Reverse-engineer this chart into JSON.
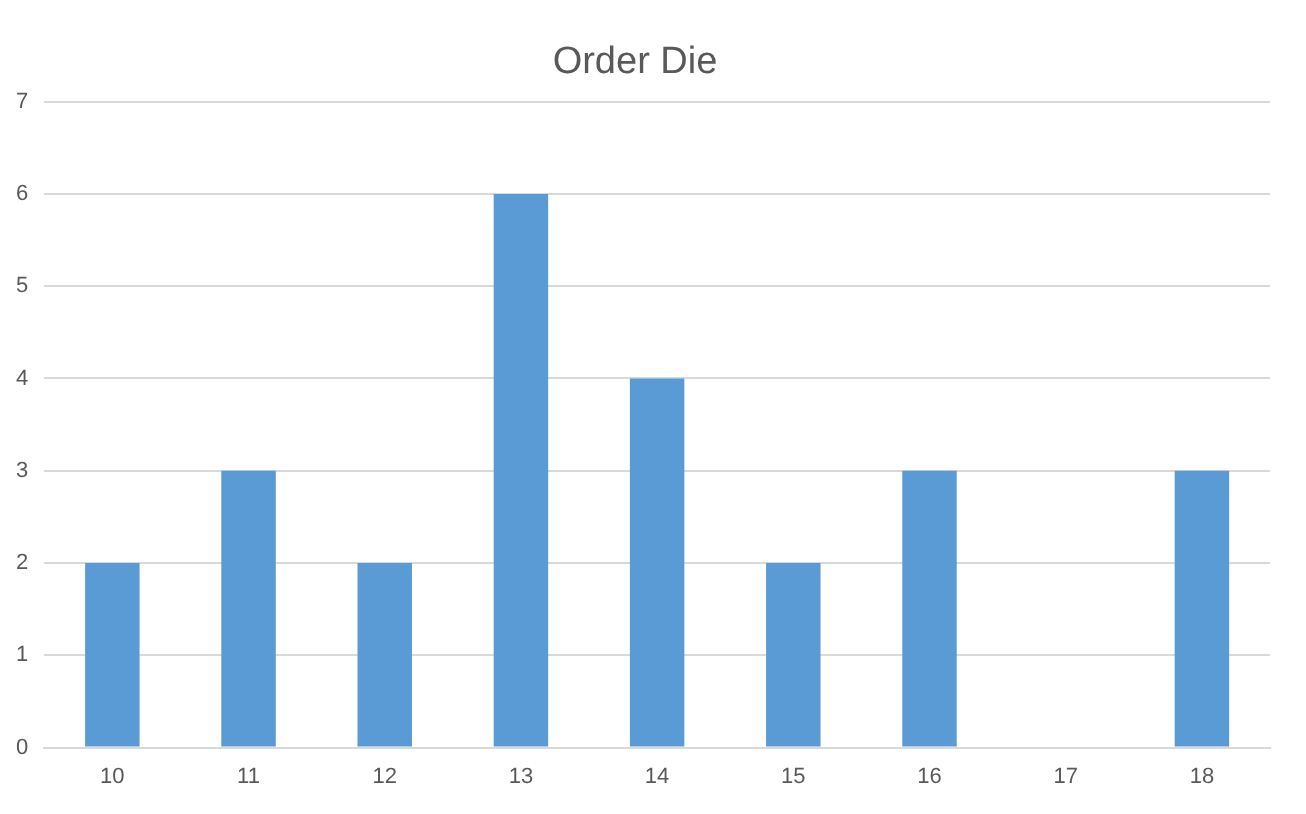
{
  "chart_data": {
    "type": "bar",
    "title": "Order Die",
    "categories": [
      "10",
      "11",
      "12",
      "13",
      "14",
      "15",
      "16",
      "17",
      "18"
    ],
    "values": [
      2,
      3,
      2,
      6,
      4,
      2,
      3,
      0,
      3
    ],
    "color": "#5b9bd5",
    "ylim": [
      0,
      7
    ],
    "yticks": [
      0,
      1,
      2,
      3,
      4,
      5,
      6,
      7
    ],
    "grid": "y"
  }
}
